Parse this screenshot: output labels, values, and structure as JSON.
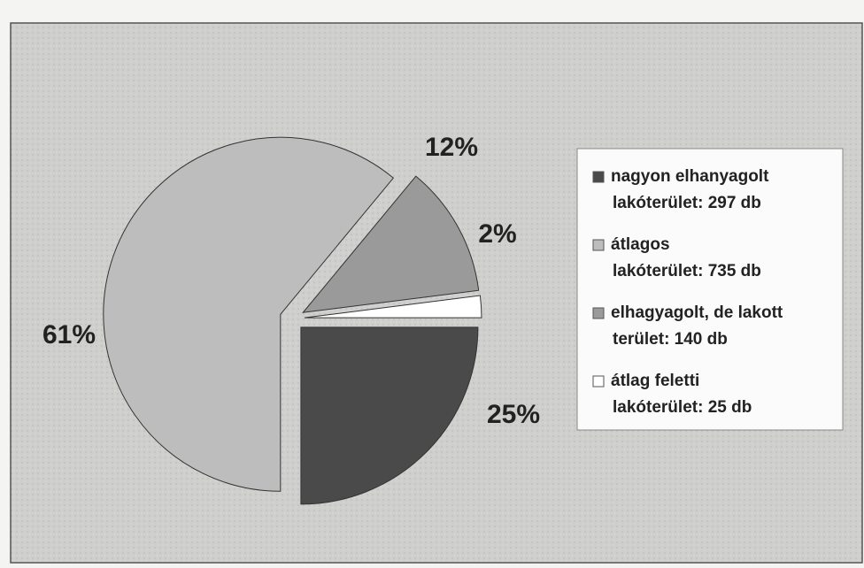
{
  "chart_data": {
    "type": "pie",
    "categories": [
      [
        "nagyon elhanyagolt",
        "lakóterület: 297 db"
      ],
      [
        "átlagos",
        "lakóterület: 735 db"
      ],
      [
        "elhagyagolt, de lakott",
        "terület: 140 db"
      ],
      [
        "átlag feletti",
        "lakóterület: 25 db"
      ]
    ],
    "values": [
      25,
      61,
      12,
      2
    ],
    "value_labels": [
      "25%",
      "61%",
      "12%",
      "2%"
    ],
    "colors": [
      "#4a4a4a",
      "#bdbdbd",
      "#9a9a9a",
      "#ffffff"
    ],
    "legend": "right"
  }
}
